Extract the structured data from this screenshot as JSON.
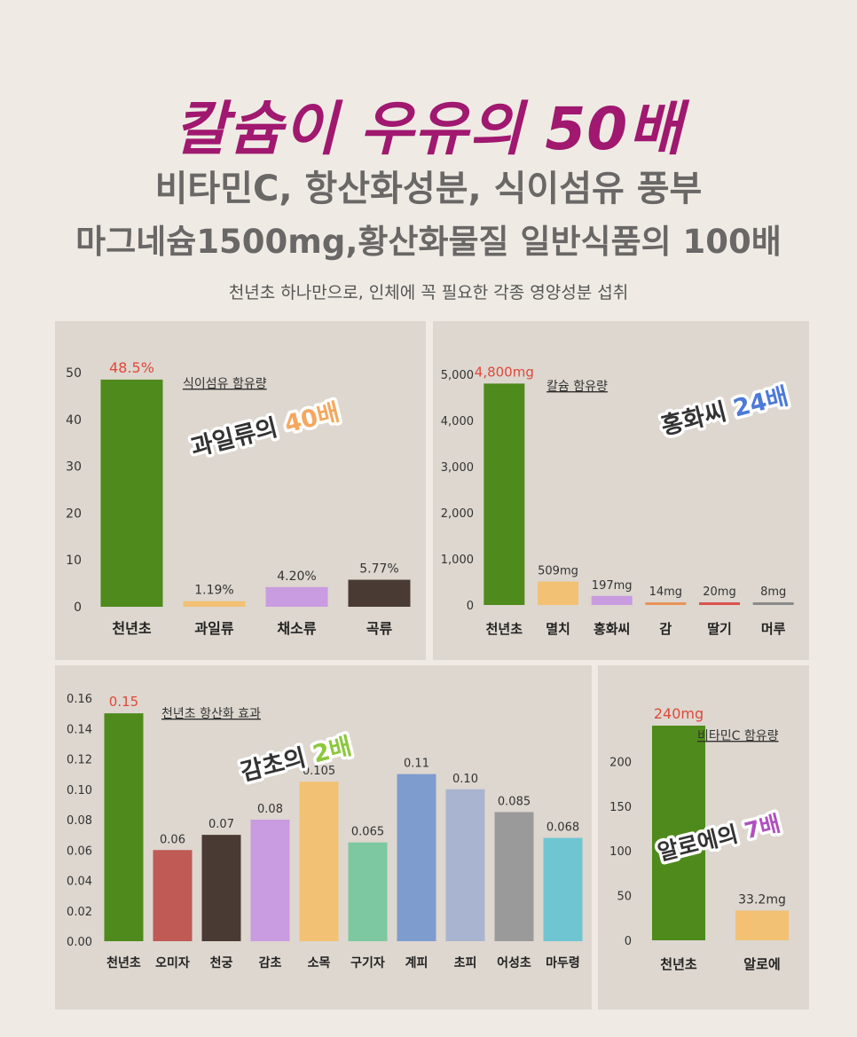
{
  "header": {
    "title": "칼슘이 우유의 50배",
    "subtitle1": "비타민C, 항산화성분, 식이섬유 풍부",
    "subtitle2": "마그네슘1500mg,황산화물질 일반식품의 100배",
    "caption": "천년초 하나만으로, 인체에 꼭 필요한 각종 영양성분 섭취"
  },
  "chart_data": [
    {
      "type": "bar",
      "title": "식이섬유 함유량",
      "categories": [
        "천년초",
        "과일류",
        "채소류",
        "곡류"
      ],
      "values": [
        48.5,
        1.19,
        4.2,
        5.77
      ],
      "value_labels": [
        "48.5%",
        "1.19%",
        "4.20%",
        "5.77%"
      ],
      "yticks": [
        "0",
        "10",
        "20",
        "30",
        "40",
        "50"
      ],
      "ylim": [
        0,
        50
      ],
      "colors": [
        "#4f8a1c",
        "#f2c174",
        "#c99be0",
        "#4a3a34"
      ],
      "callout": {
        "text": "과일류의 ",
        "highlight": "40배",
        "highlight_color": "#f5a75e"
      },
      "grid": false
    },
    {
      "type": "bar",
      "title": "칼슘 함유량",
      "categories": [
        "천년초",
        "멸치",
        "홍화씨",
        "감",
        "딸기",
        "머루"
      ],
      "values": [
        4800,
        509,
        197,
        14,
        20,
        8
      ],
      "value_labels": [
        "4,800mg",
        "509mg",
        "197mg",
        "14mg",
        "20mg",
        "8mg"
      ],
      "yticks": [
        "0",
        "1,000",
        "2,000",
        "3,000",
        "4,000",
        "5,000"
      ],
      "ylim": [
        0,
        5000
      ],
      "colors": [
        "#4f8a1c",
        "#f2c174",
        "#c99be0",
        "#e8925a",
        "#d9534f",
        "#8a8a8a"
      ],
      "callout": {
        "text": "홍화씨 ",
        "highlight": "24배",
        "highlight_color": "#4d79d8"
      },
      "grid": false
    },
    {
      "type": "bar",
      "title": "천년초 항산화 효과",
      "categories": [
        "천년초",
        "오미자",
        "천궁",
        "감초",
        "소목",
        "구기자",
        "계피",
        "초피",
        "어성초",
        "마두령"
      ],
      "values": [
        0.15,
        0.06,
        0.07,
        0.08,
        0.105,
        0.065,
        0.11,
        0.1,
        0.085,
        0.068
      ],
      "value_labels": [
        "0.15",
        "0.06",
        "0.07",
        "0.08",
        "0.105",
        "0.065",
        "0.11",
        "0.10",
        "0.085",
        "0.068"
      ],
      "yticks": [
        "0.00",
        "0.02",
        "0.04",
        "0.06",
        "0.08",
        "0.10",
        "0.12",
        "0.14",
        "0.16"
      ],
      "ylim": [
        0,
        0.16
      ],
      "colors": [
        "#4f8a1c",
        "#bf5a55",
        "#4a3a34",
        "#c99be0",
        "#f2c174",
        "#7dc8a0",
        "#7f9ccf",
        "#a9b4d0",
        "#9a9a9a",
        "#6fc6d2"
      ],
      "callout": {
        "text": "감초의 ",
        "highlight": "2배",
        "highlight_color": "#8bc83c"
      },
      "grid": false
    },
    {
      "type": "bar",
      "title": "비타민C 함유량",
      "categories": [
        "천년초",
        "알로에"
      ],
      "values": [
        240,
        33.2
      ],
      "value_labels": [
        "240mg",
        "33.2mg"
      ],
      "yticks": [
        "0",
        "50",
        "100",
        "150",
        "200"
      ],
      "ylim": [
        0,
        240
      ],
      "colors": [
        "#4f8a1c",
        "#f2c174"
      ],
      "callout": {
        "text": "알로에의 ",
        "highlight": "7배",
        "highlight_color": "#b04fc0"
      },
      "grid": false
    }
  ]
}
